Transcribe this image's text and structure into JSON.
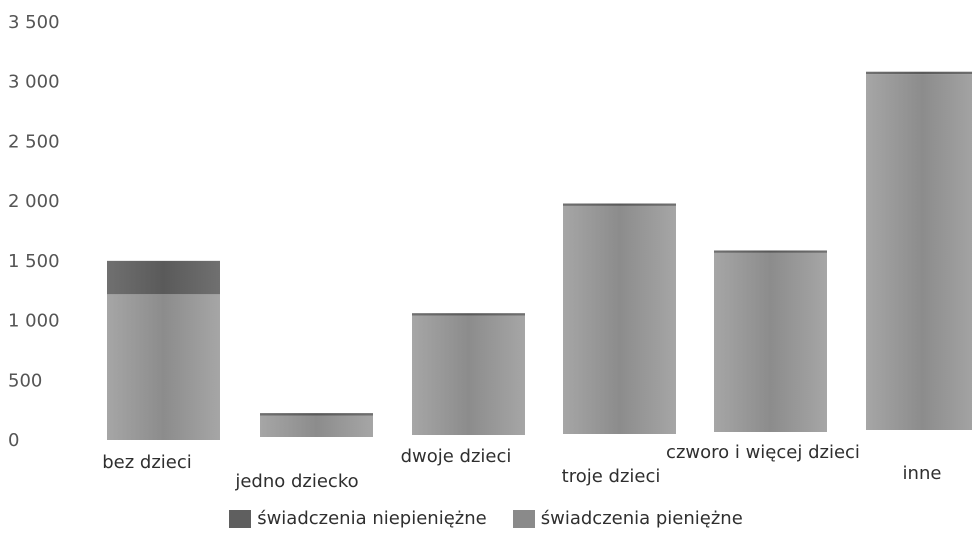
{
  "chart_data": {
    "type": "bar",
    "stacked": true,
    "categories": [
      "bez dzieci",
      "jedno dziecko",
      "dwoje dzieci",
      "troje dzieci",
      "czworo i więcej dzieci",
      "inne"
    ],
    "series": [
      {
        "name": "świadczenia pieniężne",
        "values": [
          1220,
          180,
          1000,
          1910,
          1500,
          2980
        ],
        "color": "#a0a0a0"
      },
      {
        "name": "świadczenia niepieniężne",
        "values": [
          280,
          20,
          20,
          20,
          20,
          20
        ],
        "color": "#6e6e6e"
      }
    ],
    "ylim": [
      0,
      3500
    ],
    "yticks": [
      {
        "value": 0,
        "label": "0"
      },
      {
        "value": 500,
        "label": "500"
      },
      {
        "value": 1000,
        "label": "1 000"
      },
      {
        "value": 1500,
        "label": "1 500"
      },
      {
        "value": 2000,
        "label": "2 000"
      },
      {
        "value": 2500,
        "label": "2 500"
      },
      {
        "value": 3000,
        "label": "3 000"
      },
      {
        "value": 3500,
        "label": "3 500"
      }
    ],
    "grid": false,
    "legend_position": "bottom"
  }
}
